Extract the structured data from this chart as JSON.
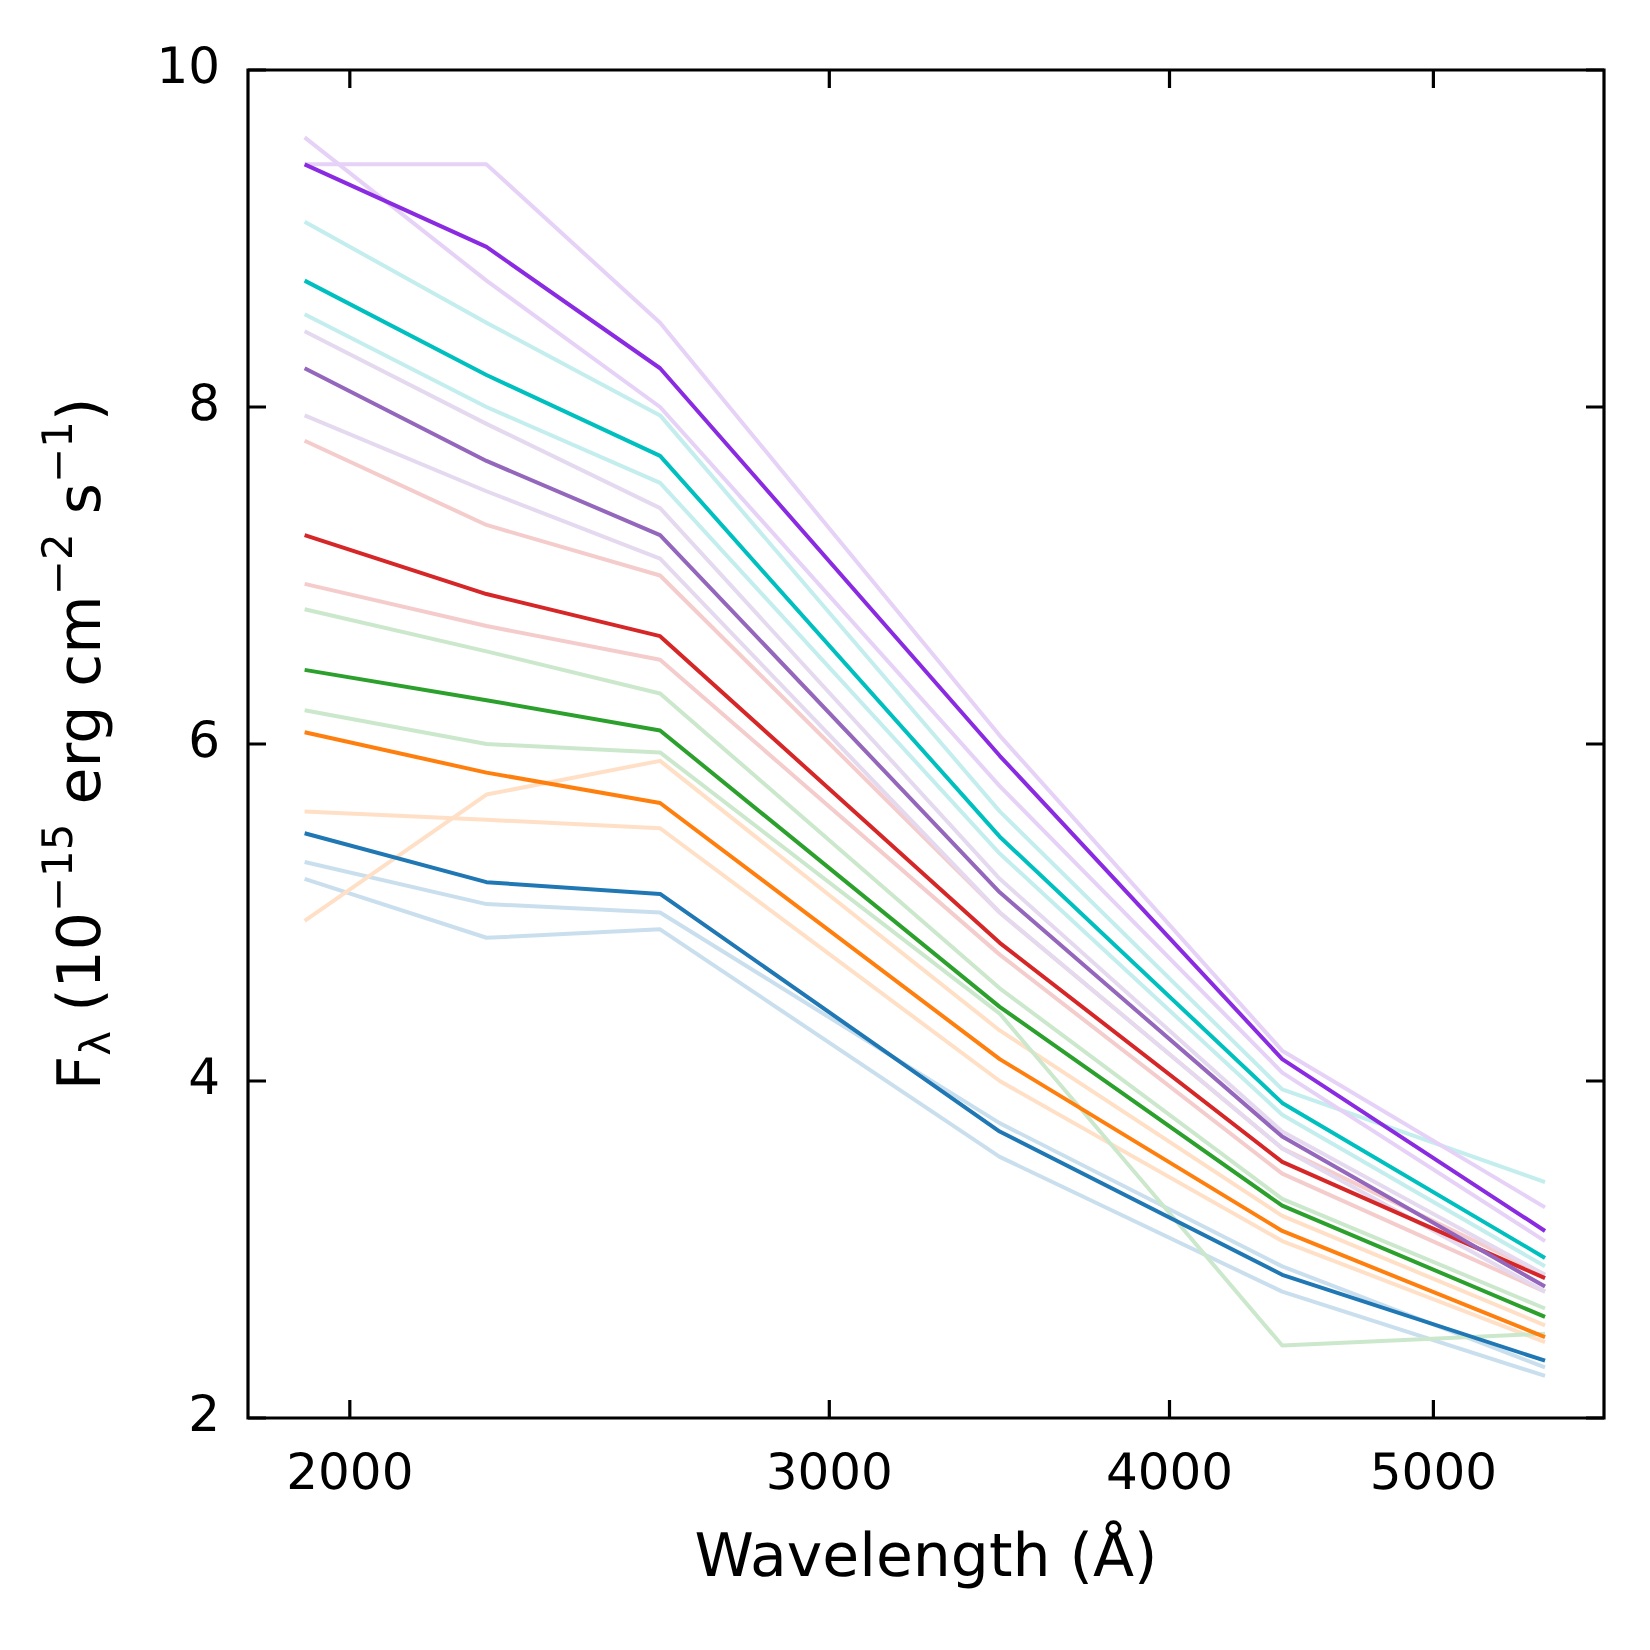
{
  "chart_data": {
    "type": "line",
    "xlabel": "Wavelength (Å)",
    "ylabel": "F$_{λ}$ (10$^{−15}$ erg cm$^{−2}$ s$^{−1}$)",
    "x": [
      1925,
      2245,
      2600,
      3465,
      4400,
      5495
    ],
    "log": "x",
    "xlim": [
      1835,
      5776
    ],
    "xticks": [
      2000,
      3000,
      4000,
      5000
    ],
    "ylim": [
      2,
      10
    ],
    "yticks": [
      2,
      4,
      6,
      8,
      10
    ],
    "marker": "none",
    "line_style": "solid",
    "legend": false,
    "series": [
      {
        "color": "#8a2be2",
        "values": [
          9.44,
          8.95,
          8.23,
          5.93,
          4.13,
          3.11
        ]
      },
      {
        "color": "#00bfbf",
        "values": [
          8.75,
          8.19,
          7.71,
          5.45,
          3.87,
          2.95
        ]
      },
      {
        "color": "#9467bd",
        "values": [
          8.23,
          7.68,
          7.24,
          5.12,
          3.67,
          2.78
        ]
      },
      {
        "color": "#d62728",
        "values": [
          7.24,
          6.89,
          6.64,
          4.82,
          3.52,
          2.83
        ]
      },
      {
        "color": "#2ca02c",
        "values": [
          6.44,
          6.26,
          6.08,
          4.44,
          3.26,
          2.6
        ]
      },
      {
        "color": "#ff7f0e",
        "values": [
          6.07,
          5.83,
          5.65,
          4.13,
          3.11,
          2.48
        ]
      },
      {
        "color": "#1f77b4",
        "values": [
          5.47,
          5.18,
          5.11,
          3.7,
          2.85,
          2.34
        ]
      },
      {
        "color": "#e6d1f7",
        "values": [
          9.44,
          9.44,
          8.5,
          6.05,
          4.18,
          3.25
        ]
      },
      {
        "color": "#e6d1f7",
        "values": [
          9.6,
          8.75,
          8.0,
          5.75,
          4.05,
          3.05
        ]
      },
      {
        "color": "#c4eeee",
        "values": [
          9.1,
          8.5,
          7.95,
          5.6,
          3.95,
          3.4
        ]
      },
      {
        "color": "#c4eeee",
        "values": [
          8.55,
          8.0,
          7.55,
          5.35,
          3.8,
          2.9
        ]
      },
      {
        "color": "#e4d9ef",
        "values": [
          8.45,
          7.9,
          7.4,
          5.2,
          3.7,
          2.85
        ]
      },
      {
        "color": "#e4d9ef",
        "values": [
          7.95,
          7.5,
          7.1,
          5.0,
          3.6,
          2.75
        ]
      },
      {
        "color": "#f5cccc",
        "values": [
          7.8,
          7.3,
          7.0,
          5.0,
          3.6,
          2.85
        ]
      },
      {
        "color": "#f5cccc",
        "values": [
          6.95,
          6.7,
          6.5,
          4.75,
          3.45,
          2.75
        ]
      },
      {
        "color": "#cce8cc",
        "values": [
          6.8,
          6.55,
          6.3,
          4.55,
          3.3,
          2.65
        ]
      },
      {
        "color": "#cce8cc",
        "values": [
          6.2,
          6.0,
          5.95,
          4.4,
          2.43,
          2.5
        ]
      },
      {
        "color": "#ffe0c6",
        "values": [
          4.95,
          5.7,
          5.9,
          4.3,
          3.2,
          2.55
        ]
      },
      {
        "color": "#ffe0c6",
        "values": [
          5.6,
          5.55,
          5.5,
          4.0,
          3.05,
          2.45
        ]
      },
      {
        "color": "#cadfee",
        "values": [
          5.2,
          4.85,
          4.9,
          3.55,
          2.75,
          2.25
        ]
      },
      {
        "color": "#cadfee",
        "values": [
          5.3,
          5.05,
          5.0,
          3.75,
          2.9,
          2.3
        ]
      }
    ]
  }
}
